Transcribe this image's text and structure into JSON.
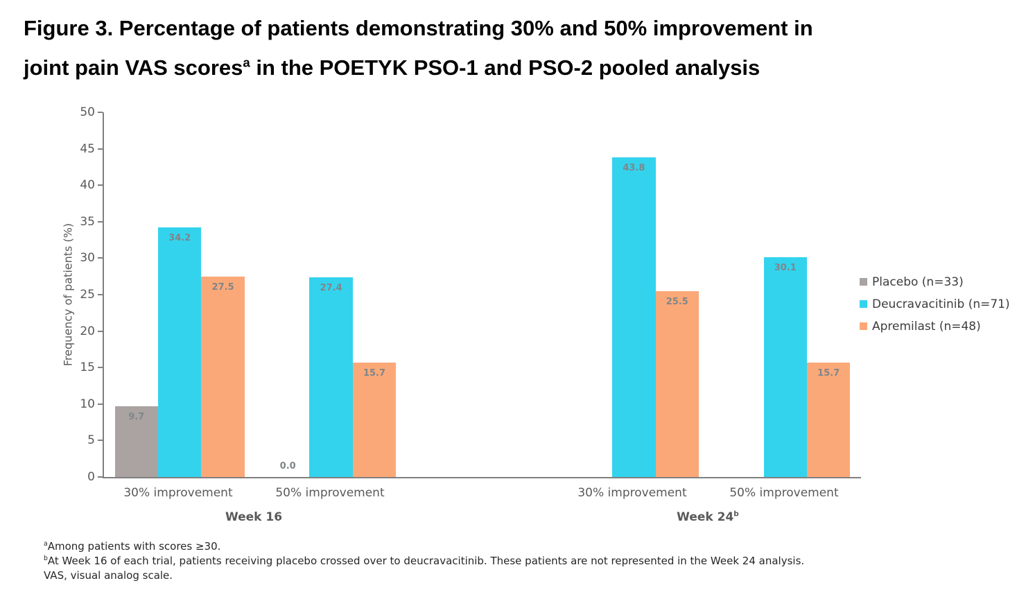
{
  "figure": {
    "title_line1": "Figure 3. Percentage of patients demonstrating 30% and 50% improvement in",
    "title_line2_pre": "joint pain VAS scores",
    "title_sup": "a",
    "title_line2_post": " in the POETYK PSO-1 and PSO-2 pooled analysis"
  },
  "chart_data": {
    "type": "bar",
    "title": "",
    "xlabel": "",
    "ylabel": "Frequency of patients (%)",
    "ylim": [
      0,
      50
    ],
    "yticks": [
      0,
      5,
      10,
      15,
      20,
      25,
      30,
      35,
      40,
      45,
      50
    ],
    "grid": false,
    "legend_position": "right",
    "categories": [
      "30% improvement",
      "50% improvement",
      "30% improvement",
      "50% improvement"
    ],
    "group_labels": [
      {
        "text": "Week 16",
        "sup": ""
      },
      {
        "text": "Week 24",
        "sup": "b"
      }
    ],
    "series": [
      {
        "key": "placebo",
        "name": "Placebo (n=33)",
        "color": "#aaa3a1",
        "values": [
          9.7,
          0.0,
          null,
          null
        ]
      },
      {
        "key": "deucravacitinib",
        "name": "Deucravacitinib (n=71)",
        "color": "#33d3ee",
        "values": [
          34.2,
          27.4,
          43.8,
          30.1
        ]
      },
      {
        "key": "apremilast",
        "name": "Apremilast (n=48)",
        "color": "#fba878",
        "values": [
          27.5,
          15.7,
          25.5,
          15.7
        ]
      }
    ],
    "value_label_decimals": 1
  },
  "footnotes": [
    {
      "sup": "a",
      "text": "Among patients with scores ≥30."
    },
    {
      "sup": "b",
      "text": "At Week 16 of each trial, patients receiving placebo crossed over to deucravacitinib. These patients are not represented in the Week 24 analysis."
    },
    {
      "sup": "",
      "text": "VAS, visual analog scale."
    }
  ],
  "colors": {
    "axis": "#7f7f7f",
    "axis_text": "#595959",
    "data_label": "#7f8689",
    "legend_text": "#3d3d3d",
    "footnote_text": "#262626",
    "title_text": "#000000"
  }
}
